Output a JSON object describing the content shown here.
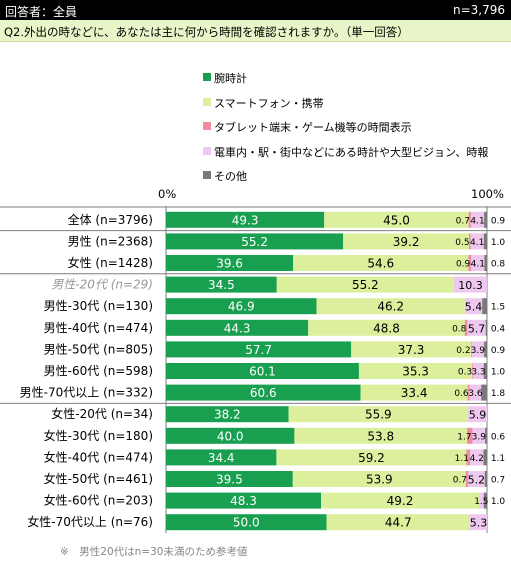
{
  "header": {
    "respondents": "回答者：全員",
    "total": "n=3,796"
  },
  "question": "Q2.外出の時などに、あなたは主に何から時間を確認されますか。（単一回答）",
  "note": "※　男性20代はn=30未満のため参考値",
  "colors": {
    "watch": "#18a050",
    "smartphone": "#dcef9c",
    "tablet": "#f08ca0",
    "public": "#eec8ee",
    "other": "#7a7a7a",
    "label_grey": "#999999",
    "grid": "#7f7f7f"
  },
  "chart_data": {
    "type": "bar",
    "orientation": "horizontal",
    "stacked": true,
    "xlim": [
      0,
      100
    ],
    "tick_labels": [
      "0%",
      "100%"
    ],
    "legend_placement": "top-center",
    "series": [
      {
        "name": "腕時計",
        "color_key": "watch"
      },
      {
        "name": "スマートフォン・携帯",
        "color_key": "smartphone"
      },
      {
        "name": "タブレット端末・ゲーム機等の時間表示",
        "color_key": "tablet"
      },
      {
        "name": "電車内・駅・街中などにある時計や大型ビジョン、時報",
        "color_key": "public"
      },
      {
        "name": "その他",
        "color_key": "other"
      }
    ],
    "rows": [
      {
        "label": "全体 (n=3796)",
        "values": [
          49.3,
          45.0,
          0.7,
          4.1,
          0.9
        ]
      },
      {
        "label": "男性 (n=2368)",
        "values": [
          55.2,
          39.2,
          0.5,
          4.1,
          1.0
        ]
      },
      {
        "label": "女性 (n=1428)",
        "values": [
          39.6,
          54.6,
          0.9,
          4.1,
          0.8
        ]
      },
      {
        "label": "男性-20代 (n=29)",
        "values": [
          34.5,
          55.2,
          0.0,
          10.3,
          0.0
        ],
        "reference": true
      },
      {
        "label": "男性-30代 (n=130)",
        "values": [
          46.9,
          46.2,
          0.0,
          5.4,
          1.5
        ]
      },
      {
        "label": "男性-40代 (n=474)",
        "values": [
          44.3,
          48.8,
          0.8,
          5.7,
          0.4
        ]
      },
      {
        "label": "男性-50代 (n=805)",
        "values": [
          57.7,
          37.3,
          0.2,
          3.9,
          0.9
        ]
      },
      {
        "label": "男性-60代 (n=598)",
        "values": [
          60.1,
          35.3,
          0.3,
          3.3,
          1.0
        ]
      },
      {
        "label": "男性-70代以上 (n=332)",
        "values": [
          60.6,
          33.4,
          0.6,
          3.6,
          1.8
        ]
      },
      {
        "label": "女性-20代 (n=34)",
        "values": [
          38.2,
          55.9,
          0.0,
          5.9,
          0.0
        ]
      },
      {
        "label": "女性-30代 (n=180)",
        "values": [
          40.0,
          53.8,
          1.7,
          3.9,
          0.6
        ]
      },
      {
        "label": "女性-40代 (n=474)",
        "values": [
          34.4,
          59.2,
          1.1,
          4.2,
          1.1
        ]
      },
      {
        "label": "女性-50代 (n=461)",
        "values": [
          39.5,
          53.9,
          0.7,
          5.2,
          0.7
        ]
      },
      {
        "label": "女性-60代 (n=203)",
        "values": [
          48.3,
          49.2,
          0.0,
          1.5,
          1.0
        ]
      },
      {
        "label": "女性-70代以上 (n=76)",
        "values": [
          50.0,
          44.7,
          0.0,
          5.3,
          0.0
        ]
      }
    ],
    "labels": [
      [
        "49.3",
        "45.0",
        "0.7",
        "4.1",
        "0.9"
      ],
      [
        "55.2",
        "39.2",
        "0.5",
        "4.1",
        "1.0"
      ],
      [
        "39.6",
        "54.6",
        "0.9",
        "4.1",
        "0.8"
      ],
      [
        "34.5",
        "55.2",
        "",
        "10.3",
        ""
      ],
      [
        "46.9",
        "46.2",
        "",
        "5.4",
        "1.5"
      ],
      [
        "44.3",
        "48.8",
        "0.8",
        "5.7",
        "0.4"
      ],
      [
        "57.7",
        "37.3",
        "0.2",
        "3.9",
        "0.9"
      ],
      [
        "60.1",
        "35.3",
        "0.3",
        "3.3",
        "1.0"
      ],
      [
        "60.6",
        "33.4",
        "0.6",
        "3.6",
        "1.8"
      ],
      [
        "38.2",
        "55.9",
        "",
        "5.9",
        ""
      ],
      [
        "40.0",
        "53.8",
        "1.7",
        "3.9",
        "0.6"
      ],
      [
        "34.4",
        "59.2",
        "1.1",
        "4.2",
        "1.1"
      ],
      [
        "39.5",
        "53.9",
        "0.7",
        "5.2",
        "0.7"
      ],
      [
        "48.3",
        "49.2",
        "",
        "1.5",
        "1.0"
      ],
      [
        "50.0",
        "44.7",
        "",
        "5.3",
        ""
      ]
    ],
    "group_separators_after": [
      0,
      2,
      8
    ]
  }
}
